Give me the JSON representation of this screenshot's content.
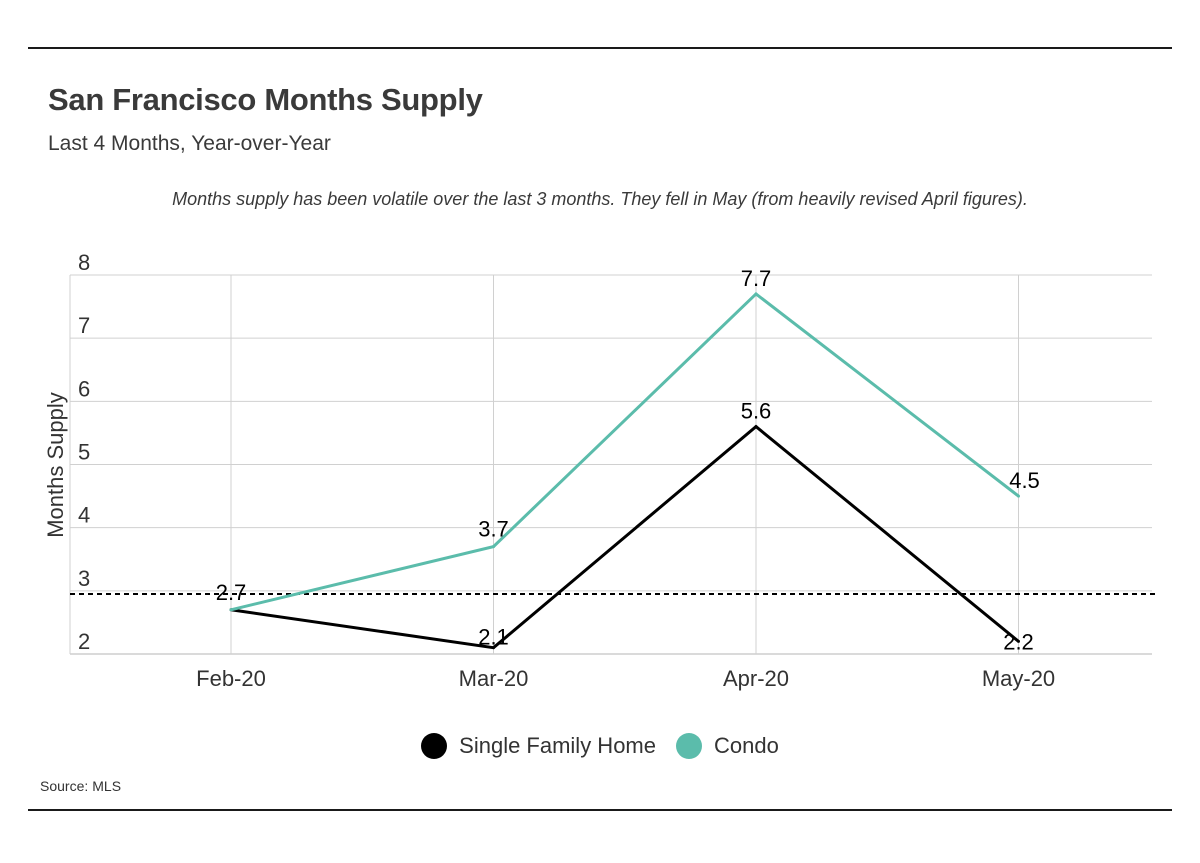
{
  "header": {
    "title": "San Francisco Months Supply",
    "subtitle": "Last 4 Months, Year-over-Year",
    "annotation": "Months supply has been volatile over the last 3 months. They fell in May (from heavily revised April figures)."
  },
  "chart_data": {
    "type": "line",
    "categories": [
      "Feb-20",
      "Mar-20",
      "Apr-20",
      "May-20"
    ],
    "series": [
      {
        "name": "Single Family Home",
        "color": "#000000",
        "values": [
          2.7,
          2.1,
          5.6,
          2.2
        ]
      },
      {
        "name": "Condo",
        "color": "#5bbcab",
        "values": [
          2.7,
          3.7,
          7.7,
          4.5
        ]
      }
    ],
    "ylabel": "Months Supply",
    "xlabel": "",
    "ylim": [
      2,
      8
    ],
    "yticks": [
      2,
      3,
      4,
      5,
      6,
      7,
      8
    ],
    "reference_line": {
      "value": 2.95,
      "style": "dashed"
    },
    "grid": true,
    "legend_position": "bottom-center"
  },
  "footer": {
    "source_label": "Source:",
    "source_value": "MLS"
  }
}
